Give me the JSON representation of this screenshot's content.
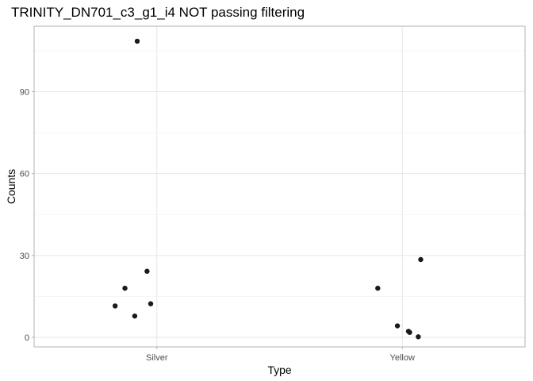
{
  "chart_data": {
    "type": "scatter",
    "title": "TRINITY_DN701_c3_g1_i4 NOT passing filtering",
    "xlabel": "Type",
    "ylabel": "Counts",
    "categories": [
      "Silver",
      "Yellow"
    ],
    "ylim": [
      -3.5,
      114
    ],
    "yticks": [
      0,
      30,
      60,
      90
    ],
    "grid": true,
    "point_color": "#1a1a1a",
    "points": [
      {
        "category": "Silver",
        "jitter": -0.17,
        "y": 11.5
      },
      {
        "category": "Silver",
        "jitter": -0.13,
        "y": 18
      },
      {
        "category": "Silver",
        "jitter": -0.09,
        "y": 7.8
      },
      {
        "category": "Silver",
        "jitter": -0.08,
        "y": 108.5
      },
      {
        "category": "Silver",
        "jitter": -0.04,
        "y": 24.2
      },
      {
        "category": "Silver",
        "jitter": -0.025,
        "y": 12.3
      },
      {
        "category": "Yellow",
        "jitter": -0.1,
        "y": 18
      },
      {
        "category": "Yellow",
        "jitter": -0.02,
        "y": 4.2
      },
      {
        "category": "Yellow",
        "jitter": 0.025,
        "y": 2.2
      },
      {
        "category": "Yellow",
        "jitter": 0.03,
        "y": 1.8
      },
      {
        "category": "Yellow",
        "jitter": 0.065,
        "y": 0.2
      },
      {
        "category": "Yellow",
        "jitter": 0.075,
        "y": 28.5
      }
    ]
  }
}
